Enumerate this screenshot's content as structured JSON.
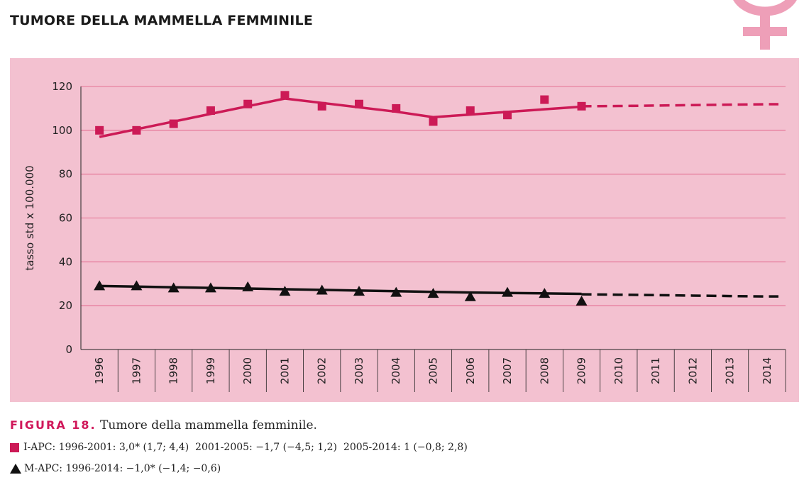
{
  "heading": "TUMORE DELLA MAMMELLA FEMMINILE",
  "caption": {
    "label": "FIGURA 18.",
    "text": "Tumore della mammella femminile."
  },
  "legend": {
    "incidence": "I-APC: 1996-2001: 3,0* (1,7; 4,4)  2001-2005: −1,7 (−4,5; 1,2)  2005-2014: 1 (−0,8; 2,8)",
    "mortality": "M-APC: 1996-2014: −1,0* (−1,4; −0,6)"
  },
  "colors": {
    "panel_bg": "#f3c1d0",
    "incidence": "#cc1a56",
    "mortality": "#111111",
    "gridline": "#e0577f",
    "symbol": "#ee9fb8"
  },
  "icons": {
    "female_symbol": "female-symbol-icon"
  },
  "chart_data": {
    "type": "line",
    "ylabel": "tasso std x 100.000",
    "xlabel": "",
    "ylim": [
      0,
      120
    ],
    "yticks": [
      0,
      20,
      40,
      60,
      80,
      100,
      120
    ],
    "categories": [
      "1996",
      "1997",
      "1998",
      "1999",
      "2000",
      "2001",
      "2002",
      "2003",
      "2004",
      "2005",
      "2006",
      "2007",
      "2008",
      "2009",
      "2010",
      "2011",
      "2012",
      "2013",
      "2014"
    ],
    "grid": true,
    "series": [
      {
        "marker": "square",
        "color": "#cc1a56",
        "observed": [
          100,
          100,
          103,
          109,
          112,
          116,
          111,
          112,
          110,
          104,
          109,
          107,
          114,
          111
        ],
        "fitted": [
          97,
          100.5,
          104,
          107.5,
          111,
          114.5,
          112.5,
          110.5,
          108.5,
          106,
          107.2,
          108.4,
          109.6,
          110.8
        ],
        "projection": [
          111,
          111.1,
          111.3,
          111.5,
          111.7,
          111.9
        ]
      },
      {
        "marker": "triangle",
        "color": "#111111",
        "observed": [
          29,
          29,
          28,
          28,
          28.5,
          26.5,
          27,
          26.5,
          26,
          25.5,
          24,
          26,
          25.5,
          22
        ],
        "fitted": [
          29,
          28.7,
          28.4,
          28.1,
          27.8,
          27.5,
          27.2,
          26.9,
          26.6,
          26.3,
          26.0,
          25.8,
          25.6,
          25.4
        ],
        "projection": [
          25.2,
          25.0,
          24.8,
          24.6,
          24.4,
          24.2
        ]
      }
    ]
  }
}
